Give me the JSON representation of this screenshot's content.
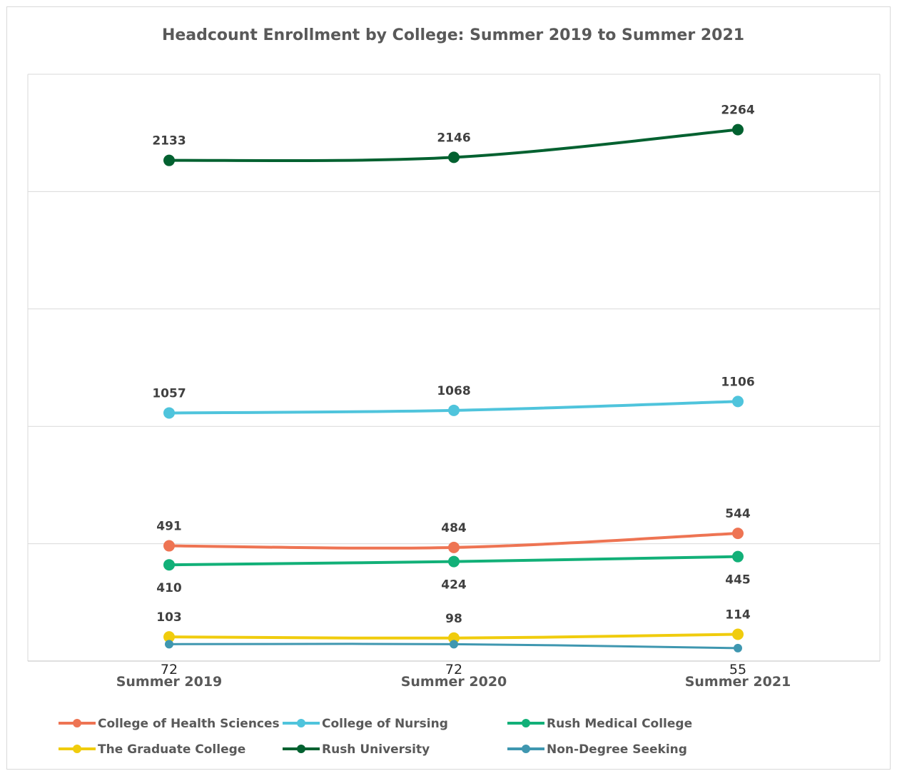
{
  "chart_data": {
    "type": "line",
    "title": "Headcount Enrollment by College: Summer 2019 to Summer 2021",
    "xlabel": "",
    "ylabel": "",
    "categories": [
      "Summer 2019",
      "Summer 2020",
      "Summer 2021"
    ],
    "ylim": [
      0,
      2500
    ],
    "y_gridlines": [
      500,
      1000,
      1500,
      2000,
      2500
    ],
    "y_tick_labels_shown": false,
    "grid": true,
    "legend_position": "bottom",
    "series": [
      {
        "name": "College of Health Sciences",
        "values": [
          491,
          484,
          544
        ],
        "color": "#ee7453",
        "label_position": "above"
      },
      {
        "name": "College of Nursing",
        "values": [
          1057,
          1068,
          1106
        ],
        "color": "#4fc4dc",
        "label_position": "above"
      },
      {
        "name": "Rush Medical College",
        "values": [
          410,
          424,
          445
        ],
        "color": "#12b078",
        "label_position": "below"
      },
      {
        "name": "The Graduate College",
        "values": [
          103,
          98,
          114
        ],
        "color": "#f0cc0d",
        "label_position": "above"
      },
      {
        "name": "Rush University",
        "values": [
          2133,
          2146,
          2264
        ],
        "color": "#026130",
        "label_position": "above"
      },
      {
        "name": "Non-Degree Seeking",
        "values": [
          72,
          72,
          55
        ],
        "color": "#3f97b0",
        "label_position": "below"
      }
    ]
  }
}
